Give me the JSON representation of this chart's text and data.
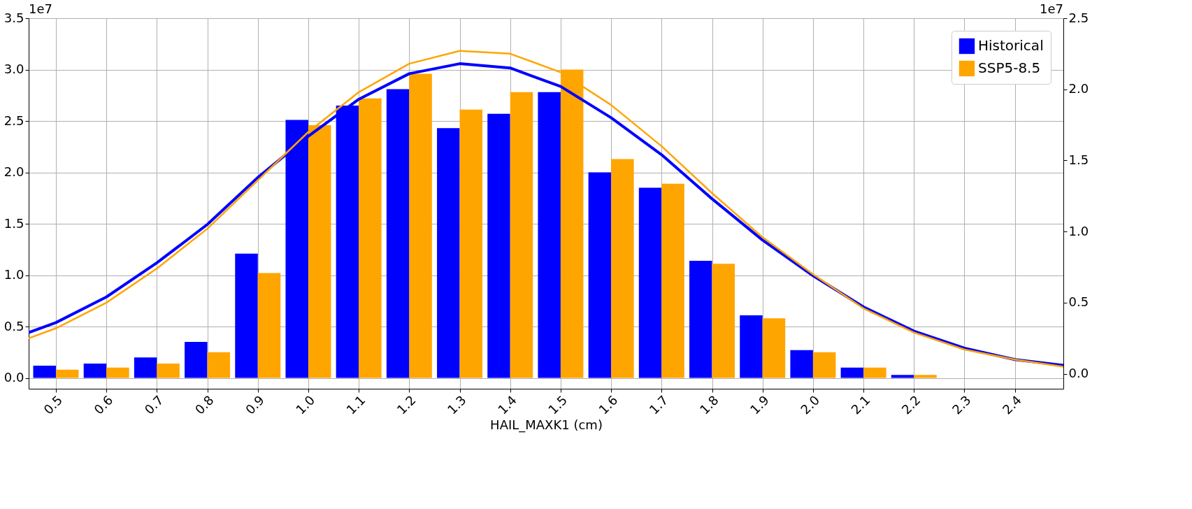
{
  "chart_data": {
    "type": "bar",
    "xlabel": "HAIL_MAXK1 (cm)",
    "annotations": [
      "1e7",
      "1e7"
    ],
    "xlim": [
      0.446,
      2.496
    ],
    "xticks": [
      0.5,
      0.6,
      0.7,
      0.8,
      0.9,
      {
        "value": 1,
        "label": "1.0"
      },
      1.1,
      1.2,
      1.3,
      1.4,
      1.5,
      1.6,
      1.7,
      1.8,
      1.9,
      {
        "value": 2,
        "label": "2.0"
      },
      2.1,
      2.2,
      2.3,
      2.4
    ],
    "ylim": [
      -0.105,
      3.5
    ],
    "yticks": [
      {
        "value": 0,
        "label": "0.0"
      },
      0.5,
      {
        "value": 1,
        "label": "1.0"
      },
      1.5,
      {
        "value": 2,
        "label": "2.0"
      },
      2.5,
      {
        "value": 3,
        "label": "3.0"
      },
      3.5
    ],
    "y2lim": [
      -0.105,
      2.5
    ],
    "y2ticks": [
      {
        "value": 0,
        "label": "0.0"
      },
      0.5,
      {
        "value": 1,
        "label": "1.0"
      },
      1.5,
      {
        "value": 2,
        "label": "2.0"
      },
      2.5
    ],
    "grid": true,
    "legend": "top right",
    "series": [
      {
        "name": "Historical",
        "color": "#0000ff",
        "x": [
          0.5,
          0.6,
          0.7,
          0.8,
          0.9,
          1.0,
          1.1,
          1.2,
          1.3,
          1.4,
          1.5,
          1.6,
          1.7,
          1.8,
          1.9,
          2.0,
          2.1,
          2.2,
          2.3,
          2.4
        ],
        "values": [
          0.12,
          0.14,
          0.2,
          0.35,
          1.21,
          2.51,
          2.65,
          2.81,
          2.43,
          2.57,
          2.78,
          2.0,
          1.85,
          1.14,
          0.61,
          0.27,
          0.1,
          0.03,
          0,
          0
        ]
      },
      {
        "name": "SSP5-8.5",
        "color": "#ffa500",
        "x": [
          0.5,
          0.6,
          0.7,
          0.8,
          0.9,
          1.0,
          1.1,
          1.2,
          1.3,
          1.4,
          1.5,
          1.6,
          1.7,
          1.8,
          1.9,
          2.0,
          2.1,
          2.2,
          2.3,
          2.4
        ],
        "values": [
          0.08,
          0.1,
          0.14,
          0.25,
          1.02,
          2.46,
          2.72,
          2.96,
          2.61,
          2.78,
          3.0,
          2.13,
          1.89,
          1.11,
          0.58,
          0.25,
          0.1,
          0.03,
          0,
          0
        ]
      },
      {
        "type": "line",
        "axis": "y2",
        "color": "#0000ff",
        "x": [
          0.446,
          0.5,
          0.6,
          0.7,
          0.8,
          0.9,
          1.0,
          1.1,
          1.2,
          1.3,
          1.4,
          1.5,
          1.6,
          1.7,
          1.8,
          1.9,
          2.0,
          2.1,
          2.2,
          2.3,
          2.4,
          2.496
        ],
        "values": [
          0.29,
          0.36,
          0.54,
          0.78,
          1.05,
          1.38,
          1.67,
          1.93,
          2.11,
          2.18,
          2.15,
          2.02,
          1.8,
          1.54,
          1.23,
          0.94,
          0.69,
          0.47,
          0.3,
          0.18,
          0.1,
          0.06
        ]
      },
      {
        "type": "line",
        "axis": "y2",
        "color": "#ffa500",
        "x": [
          0.446,
          0.5,
          0.6,
          0.7,
          0.8,
          0.9,
          1.0,
          1.1,
          1.2,
          1.3,
          1.4,
          1.5,
          1.6,
          1.7,
          1.8,
          1.9,
          2.0,
          2.1,
          2.2,
          2.3,
          2.4,
          2.496
        ],
        "values": [
          0.25,
          0.32,
          0.5,
          0.74,
          1.02,
          1.36,
          1.7,
          1.98,
          2.18,
          2.27,
          2.25,
          2.12,
          1.89,
          1.6,
          1.27,
          0.96,
          0.7,
          0.46,
          0.29,
          0.17,
          0.1,
          0.05
        ]
      }
    ]
  }
}
